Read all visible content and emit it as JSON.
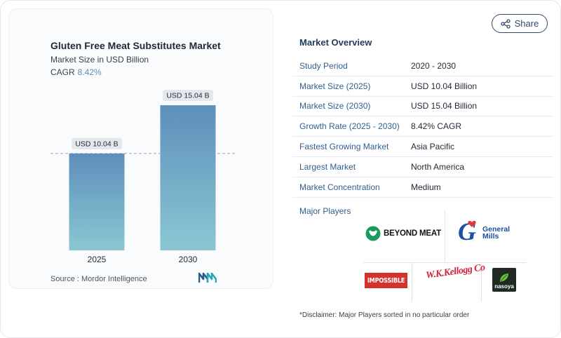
{
  "chart_data": {
    "type": "bar",
    "title": "Gluten Free Meat Substitutes Market",
    "subtitle": "Market Size in USD Billion",
    "cagr_label": "CAGR",
    "cagr_value": "8.42%",
    "categories": [
      "2025",
      "2030"
    ],
    "values": [
      10.04,
      15.04
    ],
    "data_labels": [
      "USD 10.04 B",
      "USD 15.04 B"
    ],
    "xlabel": "",
    "ylabel": "",
    "ylim": [
      0,
      16.5
    ],
    "grid": false,
    "reference_line": "dashed line at first bar value",
    "bar_gradient": [
      "#5d8fbb",
      "#8ac7d3"
    ]
  },
  "source": "Source :  Mordor Intelligence",
  "share_label": "Share",
  "overview": {
    "title": "Market Overview",
    "rows": [
      {
        "key": "Study Period",
        "value": "2020 - 2030"
      },
      {
        "key": "Market Size (2025)",
        "value": "USD 10.04 Billion"
      },
      {
        "key": "Market Size (2030)",
        "value": "USD 15.04 Billion"
      },
      {
        "key": "Growth Rate (2025 - 2030)",
        "value": "8.42% CAGR"
      },
      {
        "key": "Fastest Growing Market",
        "value": "Asia Pacific"
      },
      {
        "key": "Largest Market",
        "value": "North America"
      },
      {
        "key": "Market Concentration",
        "value": "Medium"
      }
    ]
  },
  "players": {
    "title": "Major Players",
    "logos": {
      "beyond_meat": "BEYOND MEAT",
      "general_mills_1": "General",
      "general_mills_2": "Mills",
      "general_mills_letter": "G",
      "impossible": "IMPOSSIBLE",
      "kelloggs": "W.K.Kellogg Co",
      "nasoya": "nasoya"
    }
  },
  "disclaimer": "*Disclaimer: Major Players sorted in no particular order",
  "colors": {
    "accent": "#2f5f8e",
    "title_dark": "#1f3b5c",
    "beyond_green": "#1a9a5b",
    "gm_blue": "#1d4fa3",
    "impossible_red": "#d6312d",
    "kellogg_red": "#d4213d"
  }
}
